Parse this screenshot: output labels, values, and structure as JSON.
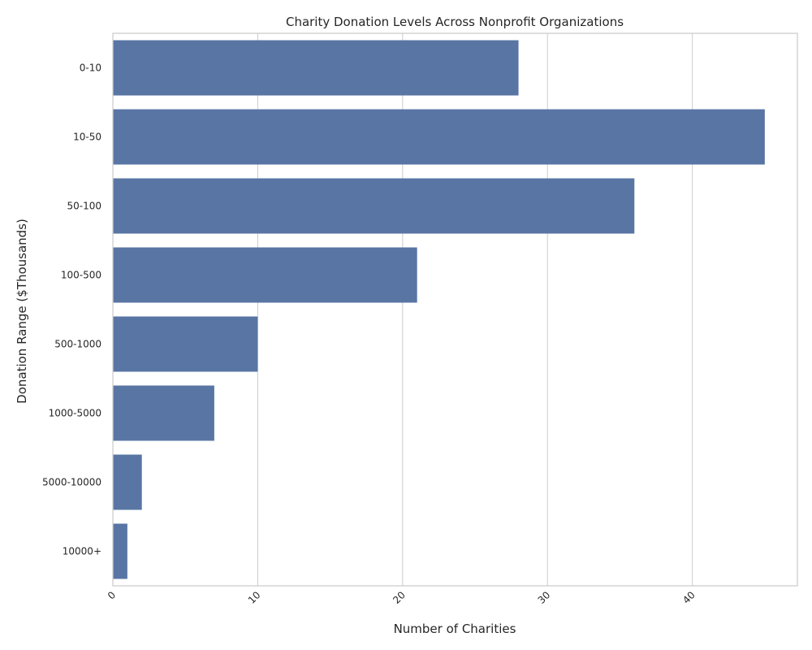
{
  "colors": {
    "bar": "#5875a4",
    "grid": "#cccccc",
    "frame": "#cccccc",
    "background": "#ffffff"
  },
  "chart_data": {
    "type": "bar",
    "orientation": "horizontal",
    "title": "Charity Donation Levels Across Nonprofit Organizations",
    "xlabel": "Number of Charities",
    "ylabel": "Donation Range ($Thousands)",
    "categories": [
      "0-10",
      "10-50",
      "50-100",
      "100-500",
      "500-1000",
      "1000-5000",
      "5000-10000",
      "10000+"
    ],
    "values": [
      28,
      45,
      36,
      21,
      10,
      7,
      2,
      1
    ],
    "xlim": [
      0,
      47.25
    ],
    "xticks": [
      0,
      10,
      20,
      30,
      40
    ],
    "grid": true,
    "legend": "none"
  }
}
